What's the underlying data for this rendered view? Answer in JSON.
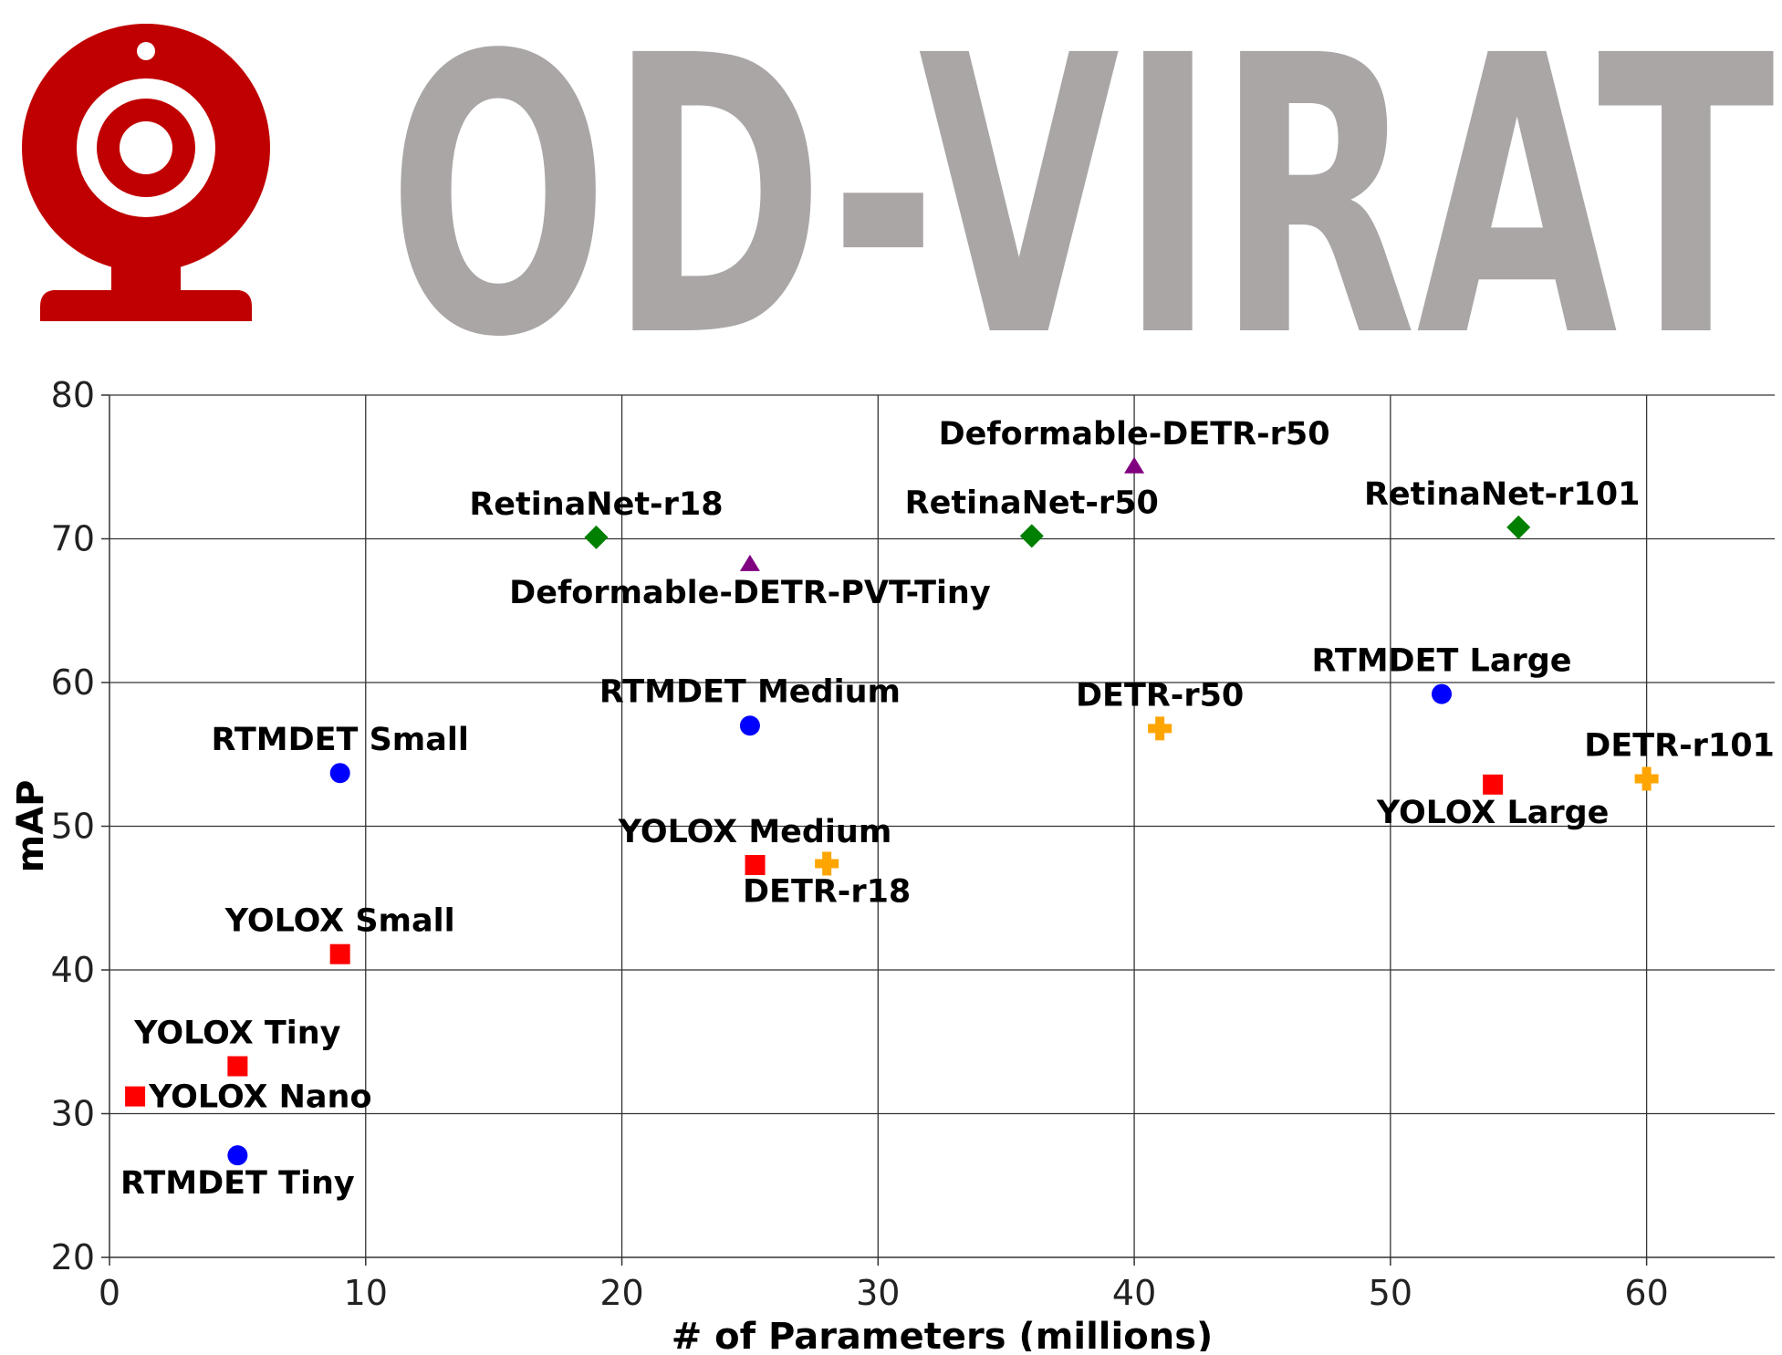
{
  "banner": {
    "logo_text": "OD-VIRAT",
    "logo_color": "#c00000",
    "text_color": "#aaa6a6",
    "dash_color": "#bdbdbd",
    "icon": "webcam-icon"
  },
  "chart_data": {
    "type": "scatter",
    "title": "",
    "xlabel": "# of Parameters (millions)",
    "ylabel": "mAP",
    "xlim": [
      0,
      65
    ],
    "ylim": [
      20,
      80
    ],
    "xticks": [
      0,
      10,
      20,
      30,
      40,
      50,
      60
    ],
    "yticks": [
      20,
      30,
      40,
      50,
      60,
      70,
      80
    ],
    "grid": true,
    "legend": "none",
    "series": [
      {
        "marker": "circle",
        "color": "#0000ff",
        "points": [
          {
            "label": "RTMDET Tiny",
            "x": 5,
            "y": 27.1
          },
          {
            "label": "RTMDET Small",
            "x": 9,
            "y": 53.7
          },
          {
            "label": "RTMDET Medium",
            "x": 25,
            "y": 57.0
          },
          {
            "label": "RTMDET Large",
            "x": 52,
            "y": 59.2
          }
        ]
      },
      {
        "marker": "square",
        "color": "#ff0000",
        "points": [
          {
            "label": "YOLOX Nano",
            "x": 1,
            "y": 31.2
          },
          {
            "label": "YOLOX Tiny",
            "x": 5,
            "y": 33.3
          },
          {
            "label": "YOLOX Small",
            "x": 9,
            "y": 41.1
          },
          {
            "label": "YOLOX Medium",
            "x": 25.2,
            "y": 47.3
          },
          {
            "label": "YOLOX Large",
            "x": 54,
            "y": 52.9
          }
        ]
      },
      {
        "marker": "diamond",
        "color": "#008000",
        "points": [
          {
            "label": "RetinaNet-r18",
            "x": 19,
            "y": 70.1
          },
          {
            "label": "RetinaNet-r50",
            "x": 36,
            "y": 70.2
          },
          {
            "label": "RetinaNet-r101",
            "x": 55,
            "y": 70.8
          }
        ]
      },
      {
        "marker": "triangle",
        "color": "#800080",
        "points": [
          {
            "label": "Deformable-DETR-PVT-Tiny",
            "x": 25,
            "y": 68.2
          },
          {
            "label": "Deformable-DETR-r50",
            "x": 40,
            "y": 75.0
          }
        ]
      },
      {
        "marker": "cross",
        "color": "#ffa500",
        "points": [
          {
            "label": "DETR-r18",
            "x": 28,
            "y": 47.4
          },
          {
            "label": "DETR-r50",
            "x": 41,
            "y": 56.8
          },
          {
            "label": "DETR-r101",
            "x": 60,
            "y": 53.3
          }
        ]
      }
    ]
  }
}
